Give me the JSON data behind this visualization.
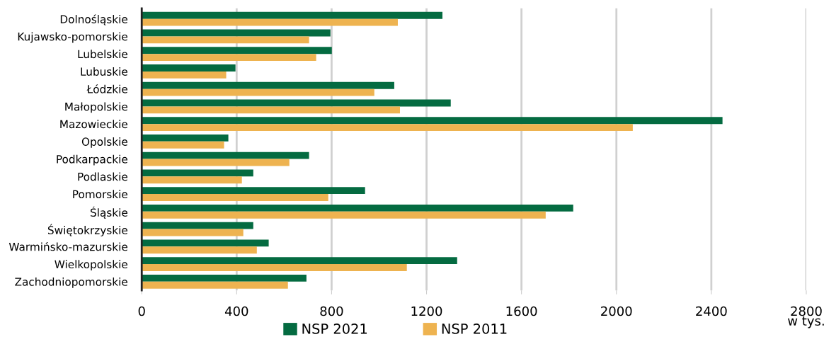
{
  "chart_data": {
    "type": "bar",
    "orientation": "horizontal",
    "categories": [
      "Dolnośląskie",
      "Kujawsko-pomorskie",
      "Lubelskie",
      "Lubuskie",
      "Łódzkie",
      "Małopolskie",
      "Mazowieckie",
      "Opolskie",
      "Podkarpackie",
      "Podlaskie",
      "Pomorskie",
      "Śląskie",
      "Świętokrzyskie",
      "Warmińsko-mazurskie",
      "Wielkopolskie",
      "Zachodniopomorskie"
    ],
    "series": [
      {
        "name": "NSP 2021",
        "color": "#046b41",
        "values": [
          1267,
          795,
          801,
          395,
          1064,
          1302,
          2447,
          365,
          705,
          470,
          941,
          1818,
          470,
          535,
          1329,
          694
        ]
      },
      {
        "name": "NSP 2011",
        "color": "#eeb350",
        "values": [
          1079,
          705,
          735,
          356,
          980,
          1088,
          2069,
          347,
          622,
          422,
          786,
          1702,
          428,
          485,
          1117,
          616
        ]
      }
    ],
    "xlim": [
      0,
      2800
    ],
    "xticks": [
      0,
      400,
      800,
      1200,
      1600,
      2000,
      2400,
      2800
    ],
    "grid": "x",
    "legend": "bottom",
    "annotations": [
      "w tys."
    ]
  }
}
